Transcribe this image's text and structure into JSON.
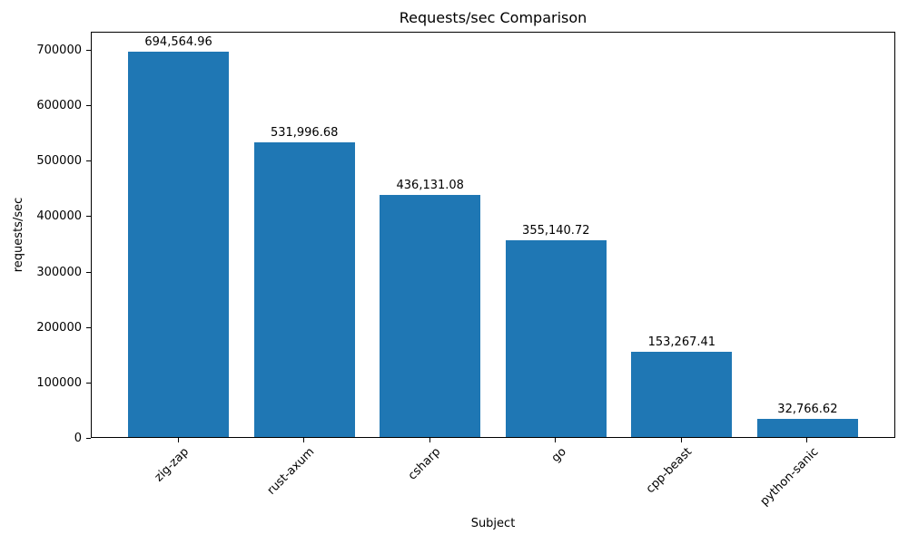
{
  "chart_data": {
    "type": "bar",
    "title": "Requests/sec Comparison",
    "xlabel": "Subject",
    "ylabel": "requests/sec",
    "categories": [
      "zig-zap",
      "rust-axum",
      "csharp",
      "go",
      "cpp-beast",
      "python-sanic"
    ],
    "values": [
      694564.96,
      531996.68,
      436131.08,
      355140.72,
      153267.41,
      32766.62
    ],
    "value_labels": [
      "694,564.96",
      "531,996.68",
      "436,131.08",
      "355,140.72",
      "153,267.41",
      "32,766.62"
    ],
    "yticks": [
      0,
      100000,
      200000,
      300000,
      400000,
      500000,
      600000,
      700000
    ],
    "ytick_labels": [
      "0",
      "100000",
      "200000",
      "300000",
      "400000",
      "500000",
      "600000",
      "700000"
    ],
    "ylim": [
      0,
      729293
    ],
    "bar_color": "#1f77b4",
    "bar_width_fraction": 0.8,
    "grid": false,
    "legend": "none"
  }
}
